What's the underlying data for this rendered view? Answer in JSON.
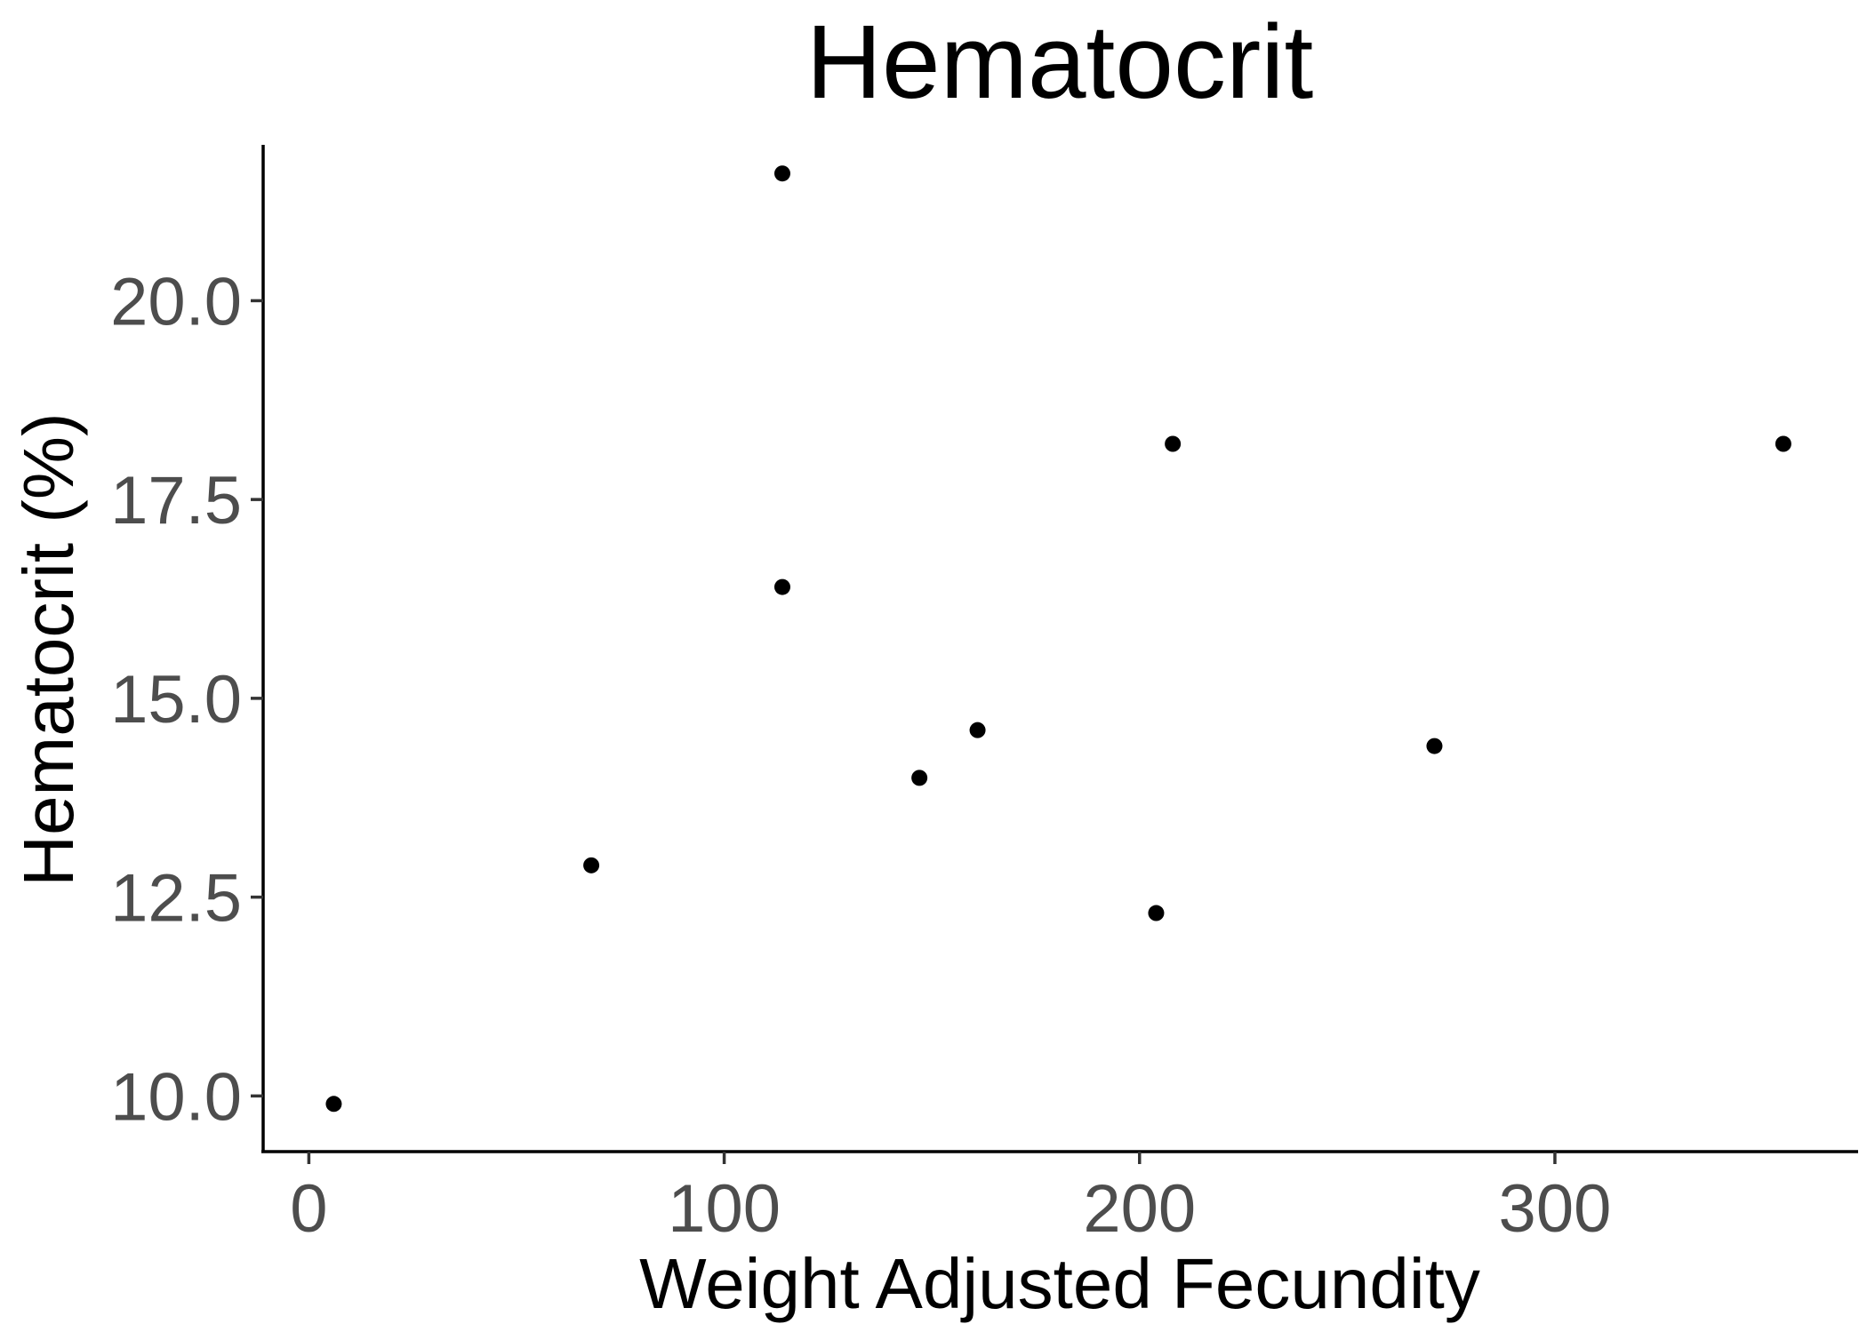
{
  "chart_data": {
    "type": "scatter",
    "title": "Hematocrit",
    "xlabel": "Weight Adjusted Fecundity",
    "ylabel": "Hematocrit (%)",
    "xlim": [
      -11,
      373
    ],
    "ylim": [
      9.3,
      21.96
    ],
    "x_ticks": [
      0,
      100,
      200,
      300
    ],
    "y_ticks": [
      10.0,
      12.5,
      15.0,
      17.5,
      20.0
    ],
    "x_tick_labels": [
      "0",
      "100",
      "200",
      "300"
    ],
    "y_tick_labels": [
      "10.0",
      "12.5",
      "15.0",
      "17.5",
      "20.0"
    ],
    "grid": false,
    "legend": "none",
    "point_color": "#000000",
    "points": [
      {
        "x": 6,
        "y": 9.9
      },
      {
        "x": 68,
        "y": 12.9
      },
      {
        "x": 114,
        "y": 21.6
      },
      {
        "x": 114,
        "y": 16.4
      },
      {
        "x": 147,
        "y": 14.0
      },
      {
        "x": 161,
        "y": 14.6
      },
      {
        "x": 204,
        "y": 12.3
      },
      {
        "x": 208,
        "y": 18.2
      },
      {
        "x": 271,
        "y": 14.4
      },
      {
        "x": 355,
        "y": 18.2
      }
    ]
  }
}
